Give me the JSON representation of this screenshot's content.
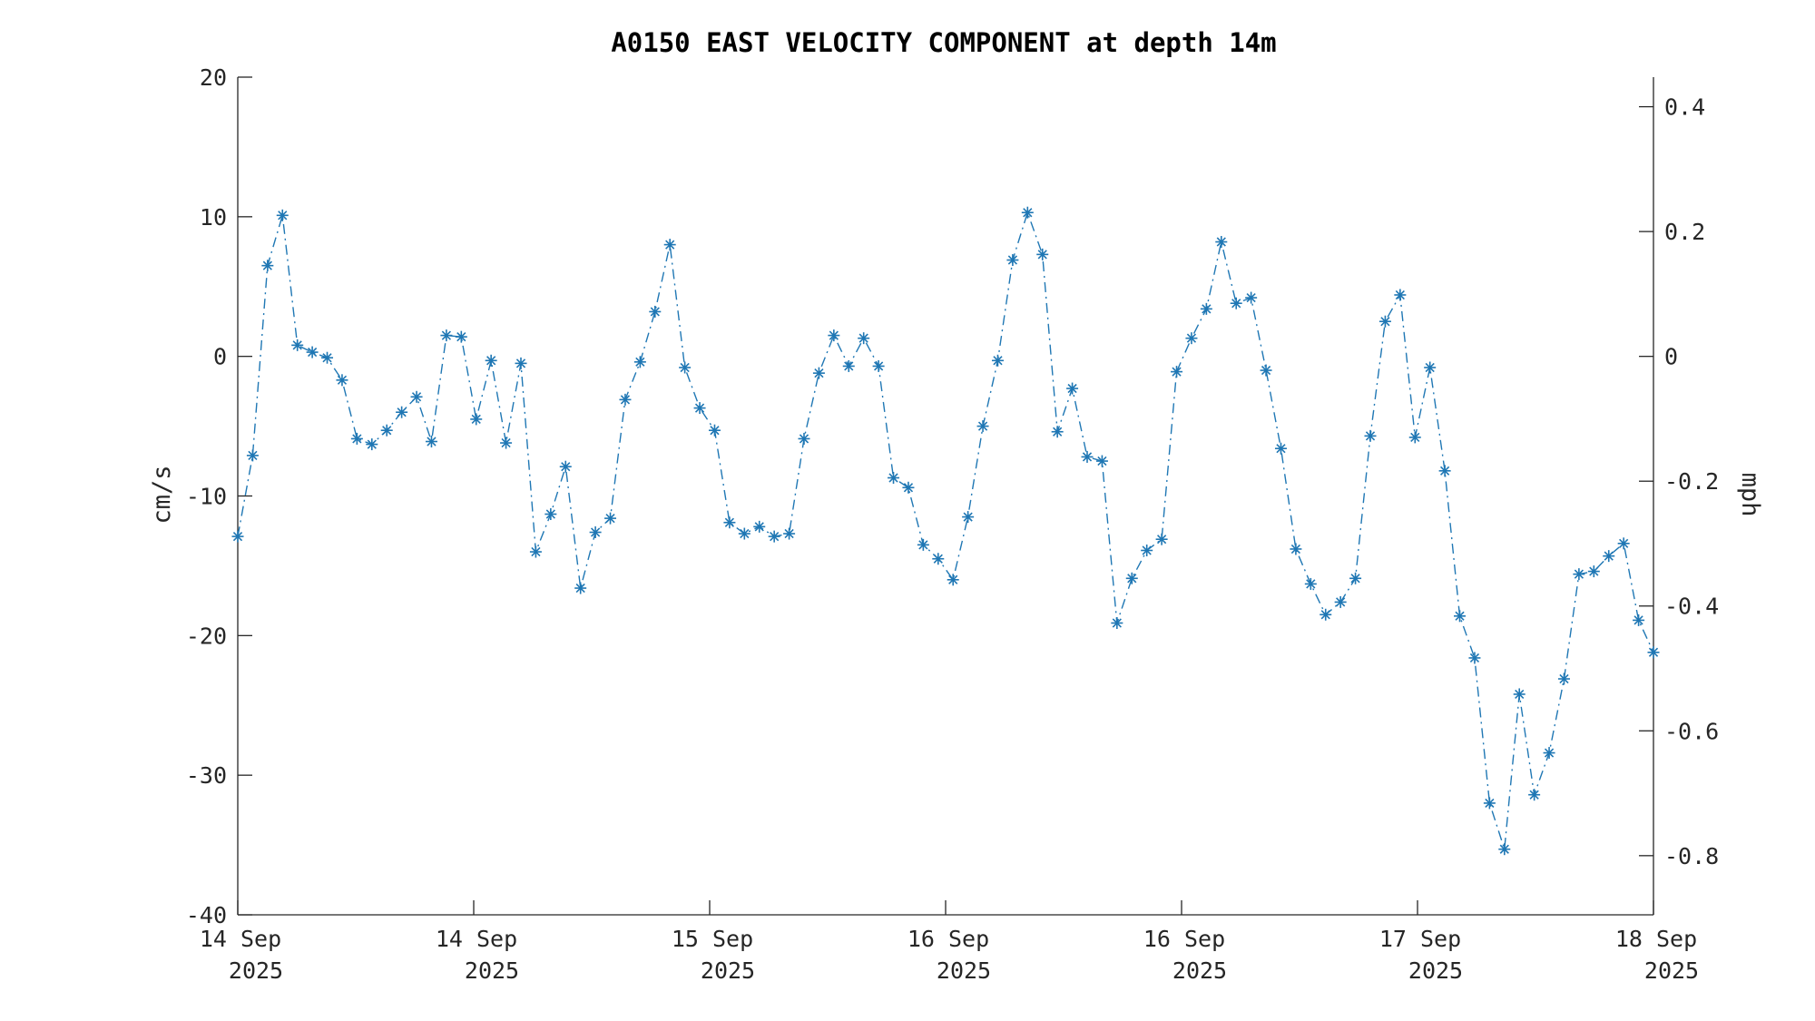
{
  "chart_data": {
    "type": "line",
    "title": "A0150 EAST VELOCITY COMPONENT at depth 14m",
    "ylabel": "cm/s",
    "ylabel_right": "mph",
    "ylim": [
      -40,
      20
    ],
    "yticks": [
      "20",
      "10",
      "0",
      "-10",
      "-20",
      "-30",
      "-40"
    ],
    "yticks_right": [
      "0.4",
      "0.2",
      "0",
      "-0.2",
      "-0.4",
      "-0.6",
      "-0.8"
    ],
    "xlim": [
      0,
      96
    ],
    "xticks": [
      {
        "hours": 0,
        "line1": "14 Sep",
        "line2": "2025"
      },
      {
        "hours": 16,
        "line1": "14 Sep",
        "line2": "2025"
      },
      {
        "hours": 32,
        "line1": "15 Sep",
        "line2": "2025"
      },
      {
        "hours": 48,
        "line1": "16 Sep",
        "line2": "2025"
      },
      {
        "hours": 64,
        "line1": "16 Sep",
        "line2": "2025"
      },
      {
        "hours": 80,
        "line1": "17 Sep",
        "line2": "2025"
      },
      {
        "hours": 96,
        "line1": "18 Sep",
        "line2": "2025"
      }
    ],
    "grid": false,
    "marker": "asterisk",
    "line_style": "dash-dot",
    "series": [
      {
        "color": "#1f77b4",
        "values": [
          -12.9,
          -7.1,
          6.5,
          10.1,
          0.8,
          0.3,
          -0.1,
          -1.7,
          -5.9,
          -6.3,
          -5.3,
          -4.0,
          -2.9,
          -6.1,
          1.5,
          1.4,
          -4.5,
          -0.3,
          -6.2,
          -0.5,
          -14.0,
          -11.3,
          -7.9,
          -16.6,
          -12.6,
          -11.6,
          -3.1,
          -0.4,
          3.2,
          8.0,
          -0.8,
          -3.7,
          -5.3,
          -11.9,
          -12.7,
          -12.2,
          -12.9,
          -12.7,
          -5.9,
          -1.2,
          1.5,
          -0.7,
          1.3,
          -0.7,
          -8.7,
          -9.4,
          -13.5,
          -14.5,
          -16.0,
          -11.5,
          -5.0,
          -0.3,
          6.9,
          10.3,
          7.3,
          -5.4,
          -2.3,
          -7.2,
          -7.5,
          -19.1,
          -15.9,
          -13.9,
          -13.1,
          -1.1,
          1.3,
          3.4,
          8.2,
          3.8,
          4.2,
          -1.0,
          -6.6,
          -13.8,
          -16.3,
          -18.5,
          -17.6,
          -15.9,
          -5.7,
          2.5,
          4.4,
          -5.8,
          -0.8,
          -8.2,
          -18.6,
          -21.6,
          -32.0,
          -35.3,
          -24.2,
          -31.4,
          -28.4,
          -23.1,
          -15.6,
          -15.4,
          -14.3,
          -13.4,
          -18.9,
          -21.2
        ]
      }
    ]
  }
}
